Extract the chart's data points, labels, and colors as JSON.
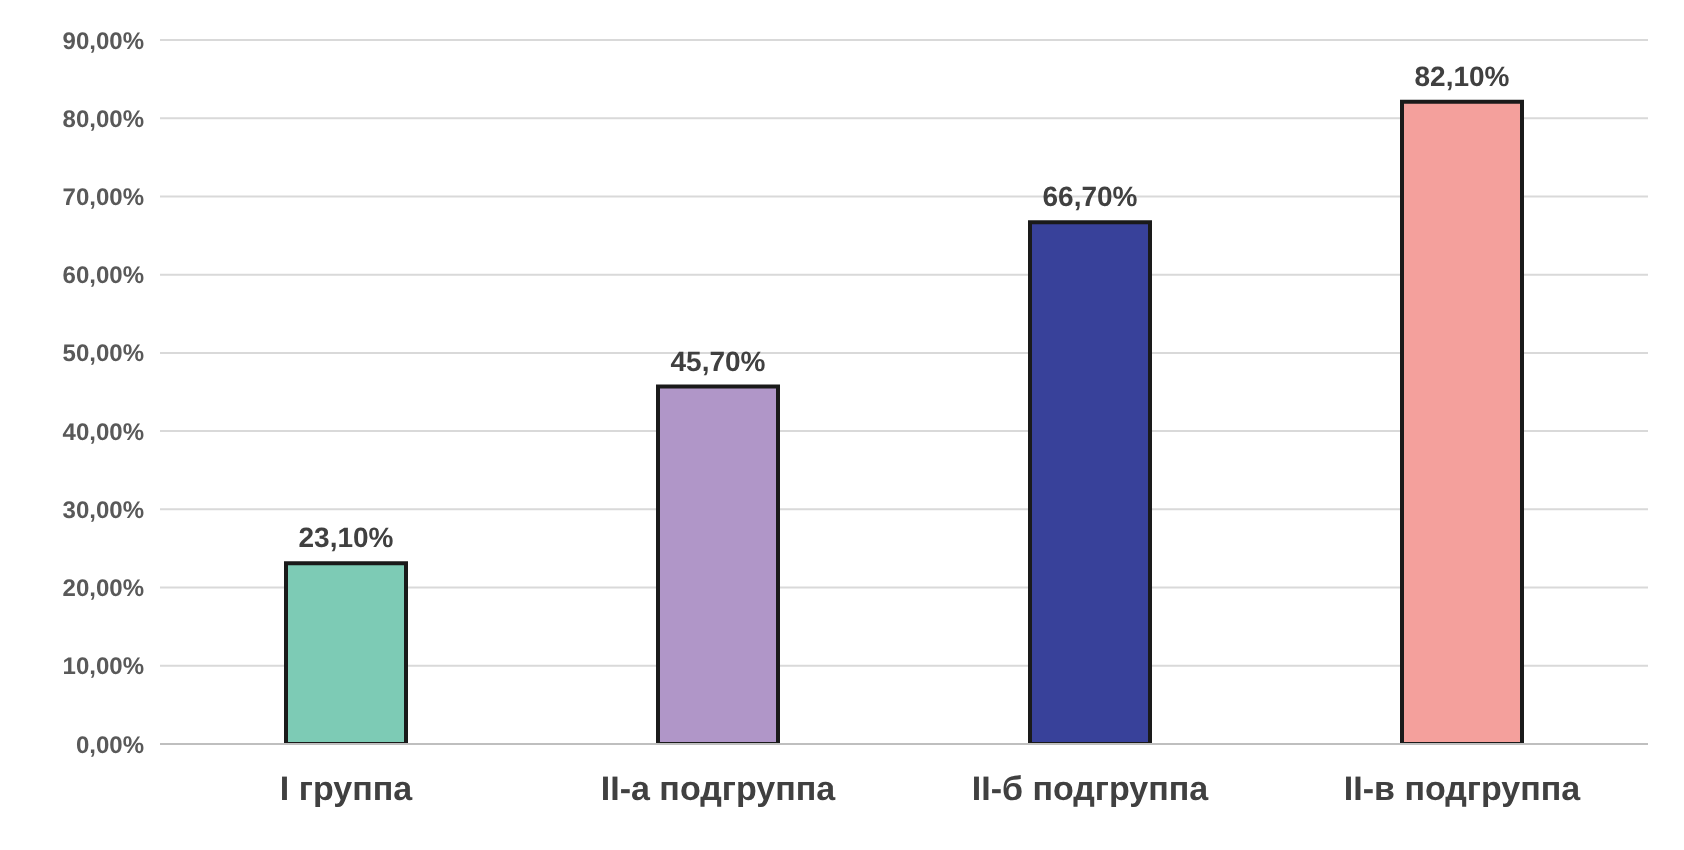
{
  "chart_data": {
    "type": "bar",
    "categories": [
      "I группа",
      "II-а подгруппа",
      "II-б подгруппа",
      "II-в подгруппа"
    ],
    "values": [
      23.1,
      45.7,
      66.7,
      82.1
    ],
    "colors": [
      "#7dcbb5",
      "#b096c8",
      "#38419a",
      "#f4a09c"
    ],
    "value_labels": [
      "23,10%",
      "45,70%",
      "66,70%",
      "82,10%"
    ],
    "ylim": [
      0,
      90
    ],
    "yticks": [
      {
        "value": 0,
        "label": "0,00%"
      },
      {
        "value": 10,
        "label": "10,00%"
      },
      {
        "value": 20,
        "label": "20,00%"
      },
      {
        "value": 30,
        "label": "30,00%"
      },
      {
        "value": 40,
        "label": "40,00%"
      },
      {
        "value": 50,
        "label": "50,00%"
      },
      {
        "value": 60,
        "label": "60,00%"
      },
      {
        "value": 70,
        "label": "70,00%"
      },
      {
        "value": 80,
        "label": "80,00%"
      },
      {
        "value": 90,
        "label": "90,00%"
      }
    ],
    "grid": "y",
    "legend": false
  }
}
